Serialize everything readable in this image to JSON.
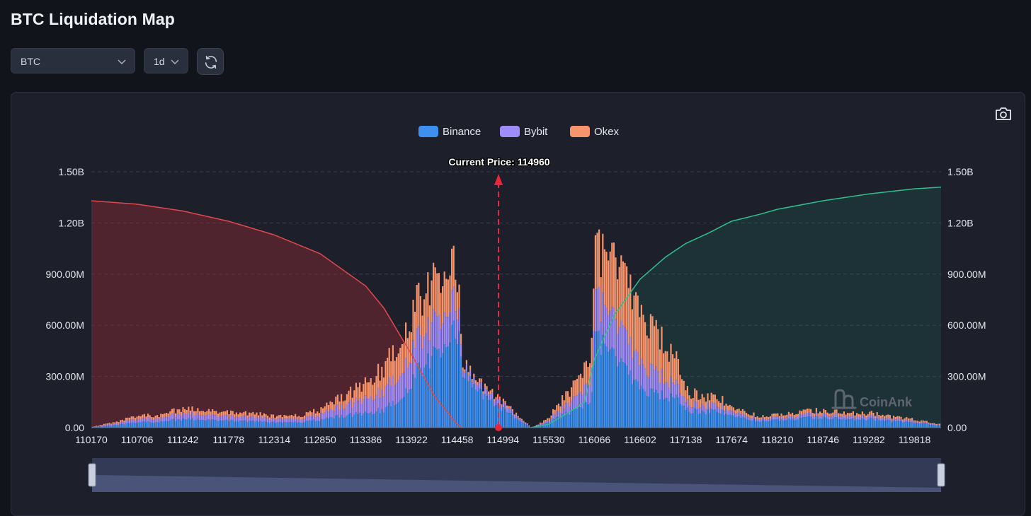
{
  "header": {
    "title": "BTC Liquidation Map"
  },
  "controls": {
    "symbol": "BTC",
    "interval": "1d",
    "refresh_icon": "refresh-icon",
    "screenshot_icon": "camera-icon"
  },
  "colors": {
    "binance": "#3d8ff0",
    "bybit": "#a08cf8",
    "okex": "#f7946b",
    "long_cumulative": "#e0484c",
    "short_cumulative": "#2ec08e",
    "current_price_marker": "#e8283a"
  },
  "watermark": "CoinAnk",
  "chart_data": {
    "type": "bar",
    "stacked": true,
    "current_price_label": "Current Price:",
    "current_price": 114960,
    "x_ticks": [
      110170,
      110706,
      111242,
      111778,
      112314,
      112850,
      113386,
      113922,
      114458,
      114994,
      115530,
      116066,
      116602,
      117138,
      117674,
      118210,
      118746,
      119282,
      119818
    ],
    "x_range": [
      110170,
      120130
    ],
    "y_ticks_left": [
      "0.00",
      "300.00M",
      "600.00M",
      "900.00M",
      "1.20B",
      "1.50B"
    ],
    "y_ticks_right": [
      "0.00",
      "300.00M",
      "600.00M",
      "900.00M",
      "1.20B",
      "1.50B"
    ],
    "y_range": [
      0,
      1500000000
    ],
    "legend": [
      "Binance",
      "Bybit",
      "Okex"
    ],
    "legend_position": "top-center",
    "grid": true,
    "bar_profile": {
      "price": [
        110170,
        110400,
        110706,
        111000,
        111242,
        111500,
        111778,
        112050,
        112314,
        112600,
        112850,
        113100,
        113386,
        113600,
        113800,
        114000,
        114200,
        114350,
        114458,
        114520,
        115320,
        115430,
        115530,
        115720,
        115900,
        116020,
        116066,
        116150,
        116300,
        116450,
        116602,
        116800,
        117000,
        117138,
        117300,
        117500,
        117674,
        117850,
        118000,
        118210,
        118500,
        118746,
        119000,
        119282,
        119500,
        119818,
        120130
      ],
      "total": [
        5000000,
        30000000,
        70000000,
        80000000,
        120000000,
        100000000,
        100000000,
        90000000,
        70000000,
        75000000,
        110000000,
        190000000,
        270000000,
        380000000,
        560000000,
        800000000,
        900000000,
        960000000,
        960000000,
        380000000,
        0,
        30000000,
        70000000,
        200000000,
        320000000,
        460000000,
        1150000000,
        1100000000,
        960000000,
        860000000,
        740000000,
        560000000,
        430000000,
        230000000,
        190000000,
        190000000,
        130000000,
        90000000,
        70000000,
        80000000,
        100000000,
        110000000,
        90000000,
        90000000,
        70000000,
        50000000,
        20000000
      ],
      "binance_share": [
        0.45,
        0.45,
        0.45,
        0.45,
        0.45,
        0.45,
        0.45,
        0.45,
        0.45,
        0.45,
        0.42,
        0.38,
        0.32,
        0.3,
        0.35,
        0.45,
        0.5,
        0.55,
        0.62,
        0.85,
        0.6,
        0.55,
        0.5,
        0.42,
        0.38,
        0.38,
        0.5,
        0.48,
        0.42,
        0.38,
        0.34,
        0.35,
        0.42,
        0.48,
        0.5,
        0.55,
        0.58,
        0.58,
        0.58,
        0.58,
        0.58,
        0.58,
        0.58,
        0.58,
        0.58,
        0.6,
        0.6
      ],
      "bybit_share": [
        0.3,
        0.3,
        0.3,
        0.3,
        0.3,
        0.3,
        0.3,
        0.3,
        0.3,
        0.3,
        0.3,
        0.32,
        0.32,
        0.32,
        0.3,
        0.25,
        0.22,
        0.2,
        0.18,
        0.1,
        0.25,
        0.25,
        0.25,
        0.25,
        0.28,
        0.28,
        0.22,
        0.22,
        0.22,
        0.22,
        0.22,
        0.22,
        0.2,
        0.2,
        0.2,
        0.2,
        0.2,
        0.2,
        0.2,
        0.2,
        0.2,
        0.2,
        0.2,
        0.2,
        0.2,
        0.2,
        0.2
      ]
    },
    "long_cumulative": {
      "price": [
        110170,
        110706,
        111242,
        111778,
        112314,
        112850,
        113386,
        113600,
        113922,
        114200,
        114458,
        114520
      ],
      "value": [
        1330000000,
        1310000000,
        1270000000,
        1210000000,
        1130000000,
        1020000000,
        830000000,
        700000000,
        430000000,
        180000000,
        20000000,
        0
      ]
    },
    "short_cumulative": {
      "price": [
        115320,
        115530,
        115800,
        115950,
        116066,
        116300,
        116602,
        116900,
        117138,
        117400,
        117674,
        118000,
        118210,
        118746,
        119282,
        119818,
        120130
      ],
      "value": [
        0,
        20000000,
        100000000,
        150000000,
        400000000,
        660000000,
        870000000,
        1000000000,
        1080000000,
        1140000000,
        1210000000,
        1250000000,
        1280000000,
        1330000000,
        1370000000,
        1400000000,
        1410000000
      ]
    }
  }
}
